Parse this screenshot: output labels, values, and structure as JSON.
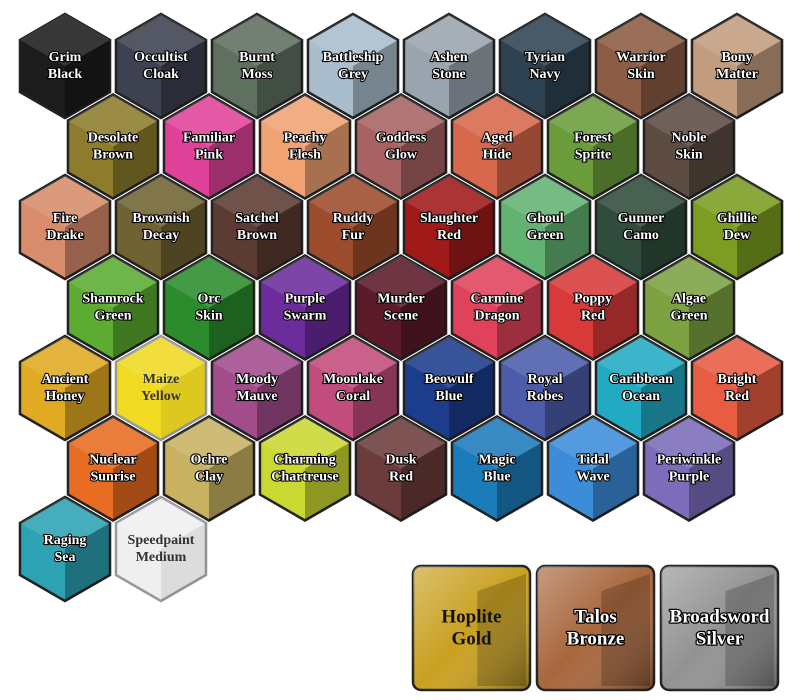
{
  "hexes": {
    "rows": [
      [
        {
          "label": [
            "Grim",
            "Black"
          ],
          "color": "#1c1c1c"
        },
        {
          "label": [
            "Occultist",
            "Cloak"
          ],
          "color": "#3d4150"
        },
        {
          "label": [
            "Burnt",
            "Moss"
          ],
          "color": "#5f6f60"
        },
        {
          "label": [
            "Battleship",
            "Grey"
          ],
          "color": "#a9bdcc"
        },
        {
          "label": [
            "Ashen",
            "Stone"
          ],
          "color": "#9aa4ae"
        },
        {
          "label": [
            "Tyrian",
            "Navy"
          ],
          "color": "#2f4252"
        },
        {
          "label": [
            "Warrior",
            "Skin"
          ],
          "color": "#8c5c44"
        },
        {
          "label": [
            "Bony",
            "Matter"
          ],
          "color": "#c29c7e"
        }
      ],
      [
        {
          "label": [
            "Desolate",
            "Brown"
          ],
          "color": "#8c7c2c"
        },
        {
          "label": [
            "Familiar",
            "Pink"
          ],
          "color": "#e0429a"
        },
        {
          "label": [
            "Peachy",
            "Flesh"
          ],
          "color": "#f0a272"
        },
        {
          "label": [
            "Goddess",
            "Glow"
          ],
          "color": "#a86262"
        },
        {
          "label": [
            "Aged",
            "Hide"
          ],
          "color": "#d8684c"
        },
        {
          "label": [
            "Forest",
            "Sprite"
          ],
          "color": "#6a9c3c"
        },
        {
          "label": [
            "Noble",
            "Skin"
          ],
          "color": "#5c4c42"
        }
      ],
      [
        {
          "label": [
            "Fire",
            "Drake"
          ],
          "color": "#d88c6c"
        },
        {
          "label": [
            "Brownish",
            "Decay"
          ],
          "color": "#706232"
        },
        {
          "label": [
            "Satchel",
            "Brown"
          ],
          "color": "#5c3c32"
        },
        {
          "label": [
            "Ruddy",
            "Fur"
          ],
          "color": "#9c4c2c"
        },
        {
          "label": [
            "Slaughter",
            "Red"
          ],
          "color": "#a01a1a"
        },
        {
          "label": [
            "Ghoul",
            "Green"
          ],
          "color": "#62b272"
        },
        {
          "label": [
            "Gunner",
            "Camo"
          ],
          "color": "#304c3c"
        },
        {
          "label": [
            "Ghillie",
            "Dew"
          ],
          "color": "#7c9c22"
        }
      ],
      [
        {
          "label": [
            "Shamrock",
            "Green"
          ],
          "color": "#5cac32"
        },
        {
          "label": [
            "Orc",
            "Skin"
          ],
          "color": "#2c8c2c"
        },
        {
          "label": [
            "Purple",
            "Swarm"
          ],
          "color": "#6c2c9c"
        },
        {
          "label": [
            "Murder",
            "Scene"
          ],
          "color": "#5c1a2a"
        },
        {
          "label": [
            "Carmine",
            "Dragon"
          ],
          "color": "#e0425c"
        },
        {
          "label": [
            "Poppy",
            "Red"
          ],
          "color": "#d83a3a"
        },
        {
          "label": [
            "Algae",
            "Green"
          ],
          "color": "#7ca242"
        }
      ],
      [
        {
          "label": [
            "Ancient",
            "Honey"
          ],
          "color": "#e0aa22"
        },
        {
          "label": [
            "Maize",
            "Yellow"
          ],
          "color": "#f0da22"
        },
        {
          "label": [
            "Moody",
            "Mauve"
          ],
          "color": "#a24c8c"
        },
        {
          "label": [
            "Moonlake",
            "Coral"
          ],
          "color": "#c24c7c"
        },
        {
          "label": [
            "Beowulf",
            "Blue"
          ],
          "color": "#1c3c8c"
        },
        {
          "label": [
            "Royal",
            "Robes"
          ],
          "color": "#4c5caa"
        },
        {
          "label": [
            "Caribbean",
            "Ocean"
          ],
          "color": "#22aac2"
        },
        {
          "label": [
            "Bright",
            "Red"
          ],
          "color": "#e85c42"
        }
      ],
      [
        {
          "label": [
            "Nuclear",
            "Sunrise"
          ],
          "color": "#e86c22"
        },
        {
          "label": [
            "Ochre",
            "Clay"
          ],
          "color": "#c8b262"
        },
        {
          "label": [
            "Charming",
            "Chartreuse"
          ],
          "color": "#cad832"
        },
        {
          "label": [
            "Dusk",
            "Red"
          ],
          "color": "#6c3c3c"
        },
        {
          "label": [
            "Magic",
            "Blue"
          ],
          "color": "#1c7cba"
        },
        {
          "label": [
            "Tidal",
            "Wave"
          ],
          "color": "#3c8cda"
        },
        {
          "label": [
            "Periwinkle",
            "Purple"
          ],
          "color": "#7c6cba"
        }
      ],
      [
        {
          "label": [
            "Raging",
            "Sea"
          ],
          "color": "#2ca2b2"
        },
        {
          "label": [
            "Speedpaint",
            "Medium"
          ],
          "color": "#efefef"
        }
      ]
    ]
  },
  "metallics": [
    {
      "label": [
        "Hoplite",
        "Gold"
      ],
      "color": "#c9a020"
    },
    {
      "label": [
        "Talos",
        "Bronze"
      ],
      "color": "#a8663c"
    },
    {
      "label": [
        "Broadsword",
        "Silver"
      ],
      "color": "#929292"
    }
  ]
}
